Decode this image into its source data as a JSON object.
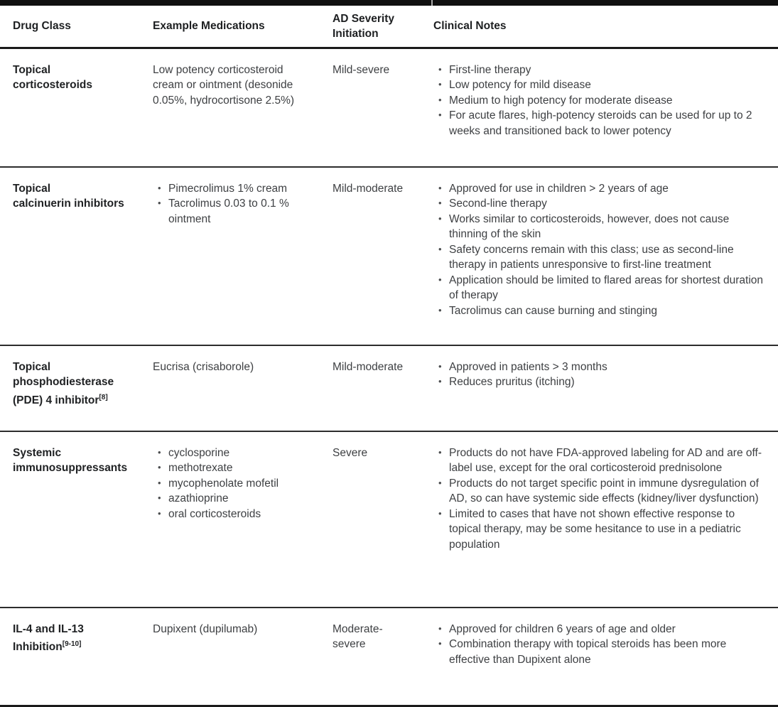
{
  "page": {
    "top_bar_color": "#101010",
    "rule_color": "#1a1a1a",
    "text_color": "#3e4043"
  },
  "table": {
    "headers": {
      "drug_class": "Drug Class",
      "medications": "Example Medications",
      "severity": "AD Severity Initiation",
      "notes": "Clinical Notes"
    },
    "rows": [
      {
        "drug_class": "Topical\ncorticosteroids",
        "drug_class_sup": "",
        "medications": {
          "bulleted": false,
          "items": [
            "Low potency corticosteroid cream or ointment (desonide 0.05%, hydrocortisone 2.5%)"
          ]
        },
        "severity": "Mild-severe",
        "notes": [
          "First-line therapy",
          "Low potency for mild disease",
          "Medium to high potency for moderate disease",
          "For acute flares, high-potency steroids can be used for up to 2 weeks and transitioned back to lower potency"
        ]
      },
      {
        "drug_class": "Topical\ncalcinuerin inhibitors",
        "drug_class_sup": "",
        "medications": {
          "bulleted": true,
          "items": [
            "Pimecrolimus 1% cream",
            "Tacrolimus 0.03 to 0.1 % ointment"
          ]
        },
        "severity": "Mild-moderate",
        "notes": [
          "Approved for use in children > 2 years of age",
          "Second-line therapy",
          "Works similar to corticosteroids, however, does not cause thinning of the skin",
          "Safety concerns remain with this class; use as second-line therapy in patients unresponsive to first-line treatment",
          "Application should be limited to flared areas for shortest duration of therapy",
          "Tacrolimus can cause burning and stinging"
        ]
      },
      {
        "drug_class": "Topical\nphosphodiesterase\n(PDE) 4 inhibitor",
        "drug_class_sup": "[8]",
        "medications": {
          "bulleted": false,
          "items": [
            "Eucrisa (crisaborole)"
          ]
        },
        "severity": "Mild-moderate",
        "notes": [
          "Approved in patients > 3 months",
          "Reduces pruritus (itching)"
        ]
      },
      {
        "drug_class": "Systemic\nimmunosuppressants",
        "drug_class_sup": "",
        "medications": {
          "bulleted": true,
          "items": [
            "cyclosporine",
            "methotrexate",
            "mycophenolate mofetil",
            "azathioprine",
            "oral corticosteroids"
          ]
        },
        "severity": "Severe",
        "notes": [
          "Products do not have FDA-approved labeling for AD and are off-label use, except for the oral corticosteroid prednisolone",
          "Products do not target specific point in immune dysregulation of AD, so can have systemic side effects (kidney/liver dysfunction)",
          "Limited to cases that have not shown effective response to topical therapy, may be some hesitance to use in a pediatric population"
        ]
      },
      {
        "drug_class": "IL-4 and IL-13\nInhibition",
        "drug_class_sup": "[9-10]",
        "medications": {
          "bulleted": false,
          "items": [
            "Dupixent (dupilumab)"
          ]
        },
        "severity": "Moderate-\nsevere",
        "notes": [
          "Approved for children 6 years of age and older",
          "Combination therapy with topical steroids has been more effective than Dupixent alone"
        ]
      }
    ]
  }
}
